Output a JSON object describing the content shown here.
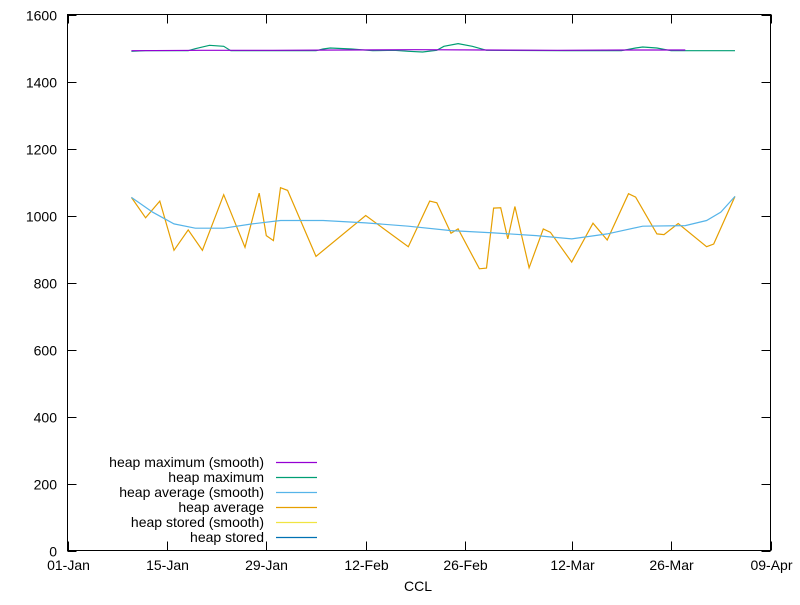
{
  "chart_data": {
    "type": "line",
    "title": "",
    "xlabel": "CCL",
    "ylabel": "",
    "ylim": [
      0,
      1600
    ],
    "yticks": [
      0,
      200,
      400,
      600,
      800,
      1000,
      1200,
      1400,
      1600
    ],
    "xlim": [
      "01-Jan",
      "09-Apr"
    ],
    "xticks": [
      "01-Jan",
      "15-Jan",
      "29-Jan",
      "12-Feb",
      "26-Feb",
      "12-Mar",
      "26-Mar",
      "09-Apr"
    ],
    "grid": false,
    "legend_position": "bottom-left",
    "series": [
      {
        "name": "heap maximum (smooth)",
        "color": "#9400d3",
        "x": [
          "10-Jan",
          "20-Jan",
          "30-Jan",
          "09-Feb",
          "19-Feb",
          "29-Feb",
          "10-Mar",
          "20-Mar",
          "28-Mar"
        ],
        "y": [
          1492,
          1493,
          1493,
          1494,
          1495,
          1494,
          1493,
          1494,
          1494
        ]
      },
      {
        "name": "heap maximum",
        "color": "#009e73",
        "x": [
          "10-Jan",
          "12-Jan",
          "18-Jan",
          "19-Jan",
          "21-Jan",
          "23-Jan",
          "24-Jan",
          "05-Feb",
          "06-Feb",
          "07-Feb",
          "10-Feb",
          "13-Feb",
          "16-Feb",
          "18-Feb",
          "20-Feb",
          "22-Feb",
          "23-Feb",
          "25-Feb",
          "27-Feb",
          "29-Feb",
          "11-Mar",
          "19-Mar",
          "21-Mar",
          "22-Mar",
          "24-Mar",
          "26-Mar",
          "04-Apr"
        ],
        "y": [
          1490,
          1492,
          1492,
          1498,
          1508,
          1505,
          1492,
          1492,
          1497,
          1500,
          1497,
          1492,
          1493,
          1490,
          1488,
          1493,
          1505,
          1513,
          1505,
          1493,
          1492,
          1492,
          1500,
          1503,
          1500,
          1492,
          1492
        ]
      },
      {
        "name": "heap average (smooth)",
        "color": "#56b4e9",
        "x": [
          "10-Jan",
          "13-Jan",
          "16-Jan",
          "19-Jan",
          "23-Jan",
          "27-Jan",
          "31-Jan",
          "06-Feb",
          "12-Feb",
          "18-Feb",
          "24-Feb",
          "01-Mar",
          "07-Mar",
          "12-Mar",
          "17-Mar",
          "22-Mar",
          "28-Mar",
          "31-Mar",
          "02-Apr",
          "04-Apr"
        ],
        "y": [
          1054,
          1010,
          975,
          962,
          962,
          975,
          985,
          985,
          978,
          968,
          955,
          948,
          940,
          930,
          945,
          968,
          970,
          985,
          1010,
          1057
        ]
      },
      {
        "name": "heap average",
        "color": "#e69f00",
        "x": [
          "10-Jan",
          "12-Jan",
          "14-Jan",
          "16-Jan",
          "18-Jan",
          "20-Jan",
          "23-Jan",
          "26-Jan",
          "28-Jan",
          "29-Jan",
          "30-Jan",
          "31-Jan",
          "01-Feb",
          "05-Feb",
          "12-Feb",
          "18-Feb",
          "21-Feb",
          "22-Feb",
          "24-Feb",
          "25-Feb",
          "28-Feb",
          "29-Feb",
          "01-Mar",
          "02-Mar",
          "03-Mar",
          "04-Mar",
          "06-Mar",
          "08-Mar",
          "09-Mar",
          "12-Mar",
          "15-Mar",
          "17-Mar",
          "20-Mar",
          "21-Mar",
          "24-Mar",
          "25-Mar",
          "27-Mar",
          "31-Mar",
          "01-Apr",
          "04-Apr"
        ],
        "y": [
          1054,
          993,
          1043,
          896,
          957,
          896,
          1062,
          905,
          1067,
          940,
          925,
          1083,
          1075,
          878,
          1000,
          907,
          1043,
          1038,
          947,
          960,
          841,
          843,
          1022,
          1023,
          930,
          1027,
          844,
          960,
          950,
          861,
          977,
          927,
          1065,
          1055,
          945,
          943,
          976,
          907,
          915,
          1057
        ]
      },
      {
        "name": "heap stored (smooth)",
        "color": "#f0e442",
        "x": [],
        "y": []
      },
      {
        "name": "heap stored",
        "color": "#0072b2",
        "x": [],
        "y": []
      }
    ]
  }
}
